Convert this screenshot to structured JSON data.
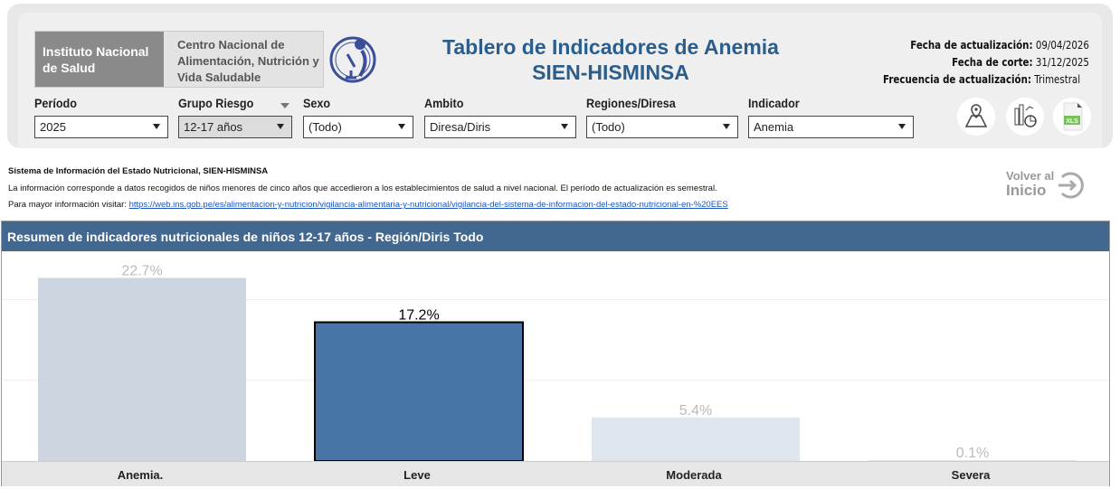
{
  "header": {
    "logo_ins": "Instituto Nacional de Salud",
    "logo_center": "Centro Nacional de Alimentación, Nutrición y Vida Saludable",
    "title_line1": "Tablero de Indicadores de Anemia",
    "title_line2": "SIEN-HISMINSA",
    "dates": [
      {
        "label": "Fecha de actualización:",
        "value": "09/04/2026"
      },
      {
        "label": "Fecha de corte:",
        "value": "31/12/2025"
      },
      {
        "label": "Frecuencia de actualización:",
        "value": "Trimestral"
      }
    ]
  },
  "filters": [
    {
      "label": "Período",
      "value": "2025"
    },
    {
      "label": "Grupo Riesgo",
      "value": "12-17 años"
    },
    {
      "label": "Sexo",
      "value": "(Todo)"
    },
    {
      "label": "Ambito",
      "value": "Diresa/Diris"
    },
    {
      "label": "Regiones/Diresa",
      "value": "(Todo)"
    },
    {
      "label": "Indicador",
      "value": "Anemia"
    }
  ],
  "icons": [
    "map-pin-icon",
    "chart-icon",
    "xls-icon"
  ],
  "xls_label": "XLS",
  "info": {
    "title": "Sistema de Información del Estado Nutricional, SIEN-HISMINSA",
    "desc": "La información corresponde a datos recogidos de niños menores de cinco años que accedieron a los establecimientos de salud a nivel nacional. El período de actualización es semestral.",
    "more_prefix": "Para mayor información visitar:",
    "link": "https://web.ins.gob.pe/es/alimentacion-y-nutricion/vigilancia-alimentaria-y-nutricional/vigilancia-del-sistema-de-informacion-del-estado-nutricional-en-%20EES"
  },
  "volver": {
    "line1": "Volver al",
    "line2": "Inicio"
  },
  "chart_data": {
    "type": "bar",
    "title": "Resumen de indicadores nutricionales de niños 12-17 años - Región/Diris Todo",
    "categories": [
      "Anemia.",
      "Leve",
      "Moderada",
      "Severa"
    ],
    "values": [
      22.7,
      17.2,
      5.4,
      0.1
    ],
    "labels": [
      "22.7%",
      "17.2%",
      "5.4%",
      "0.1%"
    ],
    "selected": "Leve",
    "ylim": [
      0,
      26
    ],
    "grid": true,
    "colors": {
      "selected": "#4775a6",
      "faded": [
        "#cdd6e0",
        "#4775a6",
        "#dfe6ee",
        "#dfe6ee"
      ]
    }
  }
}
